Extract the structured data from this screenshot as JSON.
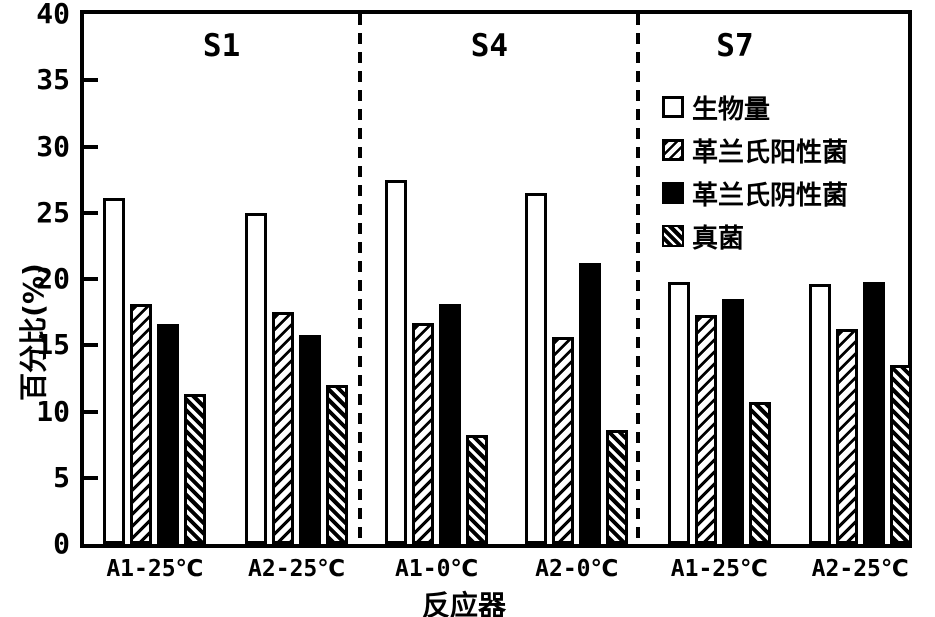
{
  "chart_data": {
    "type": "bar",
    "title": "",
    "xlabel": "反应器",
    "ylabel": "百分比(%)",
    "ylim": [
      0,
      40
    ],
    "yticks": [
      0,
      5,
      10,
      15,
      20,
      25,
      30,
      35,
      40
    ],
    "grid": false,
    "legend_position": "top-right-inside",
    "colors": {
      "foreground": "#000000",
      "background": "#ffffff"
    },
    "sections": [
      {
        "label": "S1",
        "categories_covered": [
          "A1-25℃",
          "A2-25℃"
        ]
      },
      {
        "label": "S4",
        "categories_covered": [
          "A1-0℃",
          "A2-0℃"
        ]
      },
      {
        "label": "S7",
        "categories_covered": [
          "A1-25℃",
          "A2-25℃"
        ]
      }
    ],
    "categories": [
      "A1-25℃",
      "A2-25℃",
      "A1-0℃",
      "A2-0℃",
      "A1-25℃",
      "A2-25℃"
    ],
    "series": [
      {
        "name": "生物量",
        "pattern": "white",
        "values": [
          26.1,
          25.0,
          27.5,
          26.5,
          19.8,
          19.6
        ]
      },
      {
        "name": "革兰氏阳性菌",
        "pattern": "hatch-forward",
        "values": [
          18.1,
          17.5,
          16.7,
          15.6,
          17.3,
          16.2
        ]
      },
      {
        "name": "革兰氏阴性菌",
        "pattern": "solid-black",
        "values": [
          16.6,
          15.8,
          18.1,
          21.2,
          18.5,
          19.8
        ]
      },
      {
        "name": "真菌",
        "pattern": "hatch-back-dark",
        "values": [
          11.3,
          12.0,
          8.2,
          8.6,
          10.7,
          13.5
        ]
      }
    ]
  }
}
